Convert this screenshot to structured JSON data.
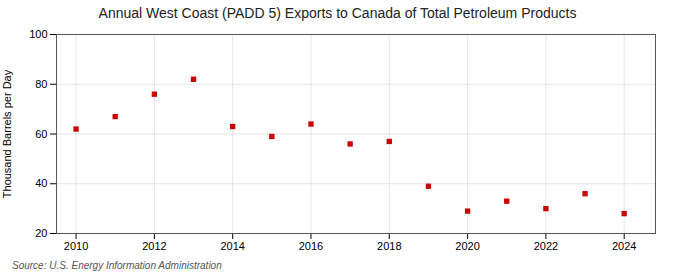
{
  "chart_data": {
    "type": "scatter",
    "title": "Annual West Coast (PADD 5) Exports to Canada of Total Petroleum Products",
    "ylabel": "Thousand Barrels per Day",
    "annotations": [
      "Source: U.S. Energy Information Administration"
    ],
    "x": [
      2010,
      2011,
      2012,
      2013,
      2014,
      2015,
      2016,
      2017,
      2018,
      2019,
      2020,
      2021,
      2022,
      2023,
      2024
    ],
    "values": [
      62,
      67,
      76,
      82,
      63,
      59,
      64,
      56,
      57,
      39,
      29,
      33,
      30,
      36,
      28
    ],
    "color": "#cc0000",
    "marker": "square",
    "xlim": [
      2009.5,
      2024.8
    ],
    "ylim": [
      20,
      100
    ],
    "xticks": [
      2010,
      2012,
      2014,
      2016,
      2018,
      2020,
      2022,
      2024
    ],
    "yticks": [
      20,
      40,
      60,
      80,
      100
    ],
    "grid": true
  }
}
